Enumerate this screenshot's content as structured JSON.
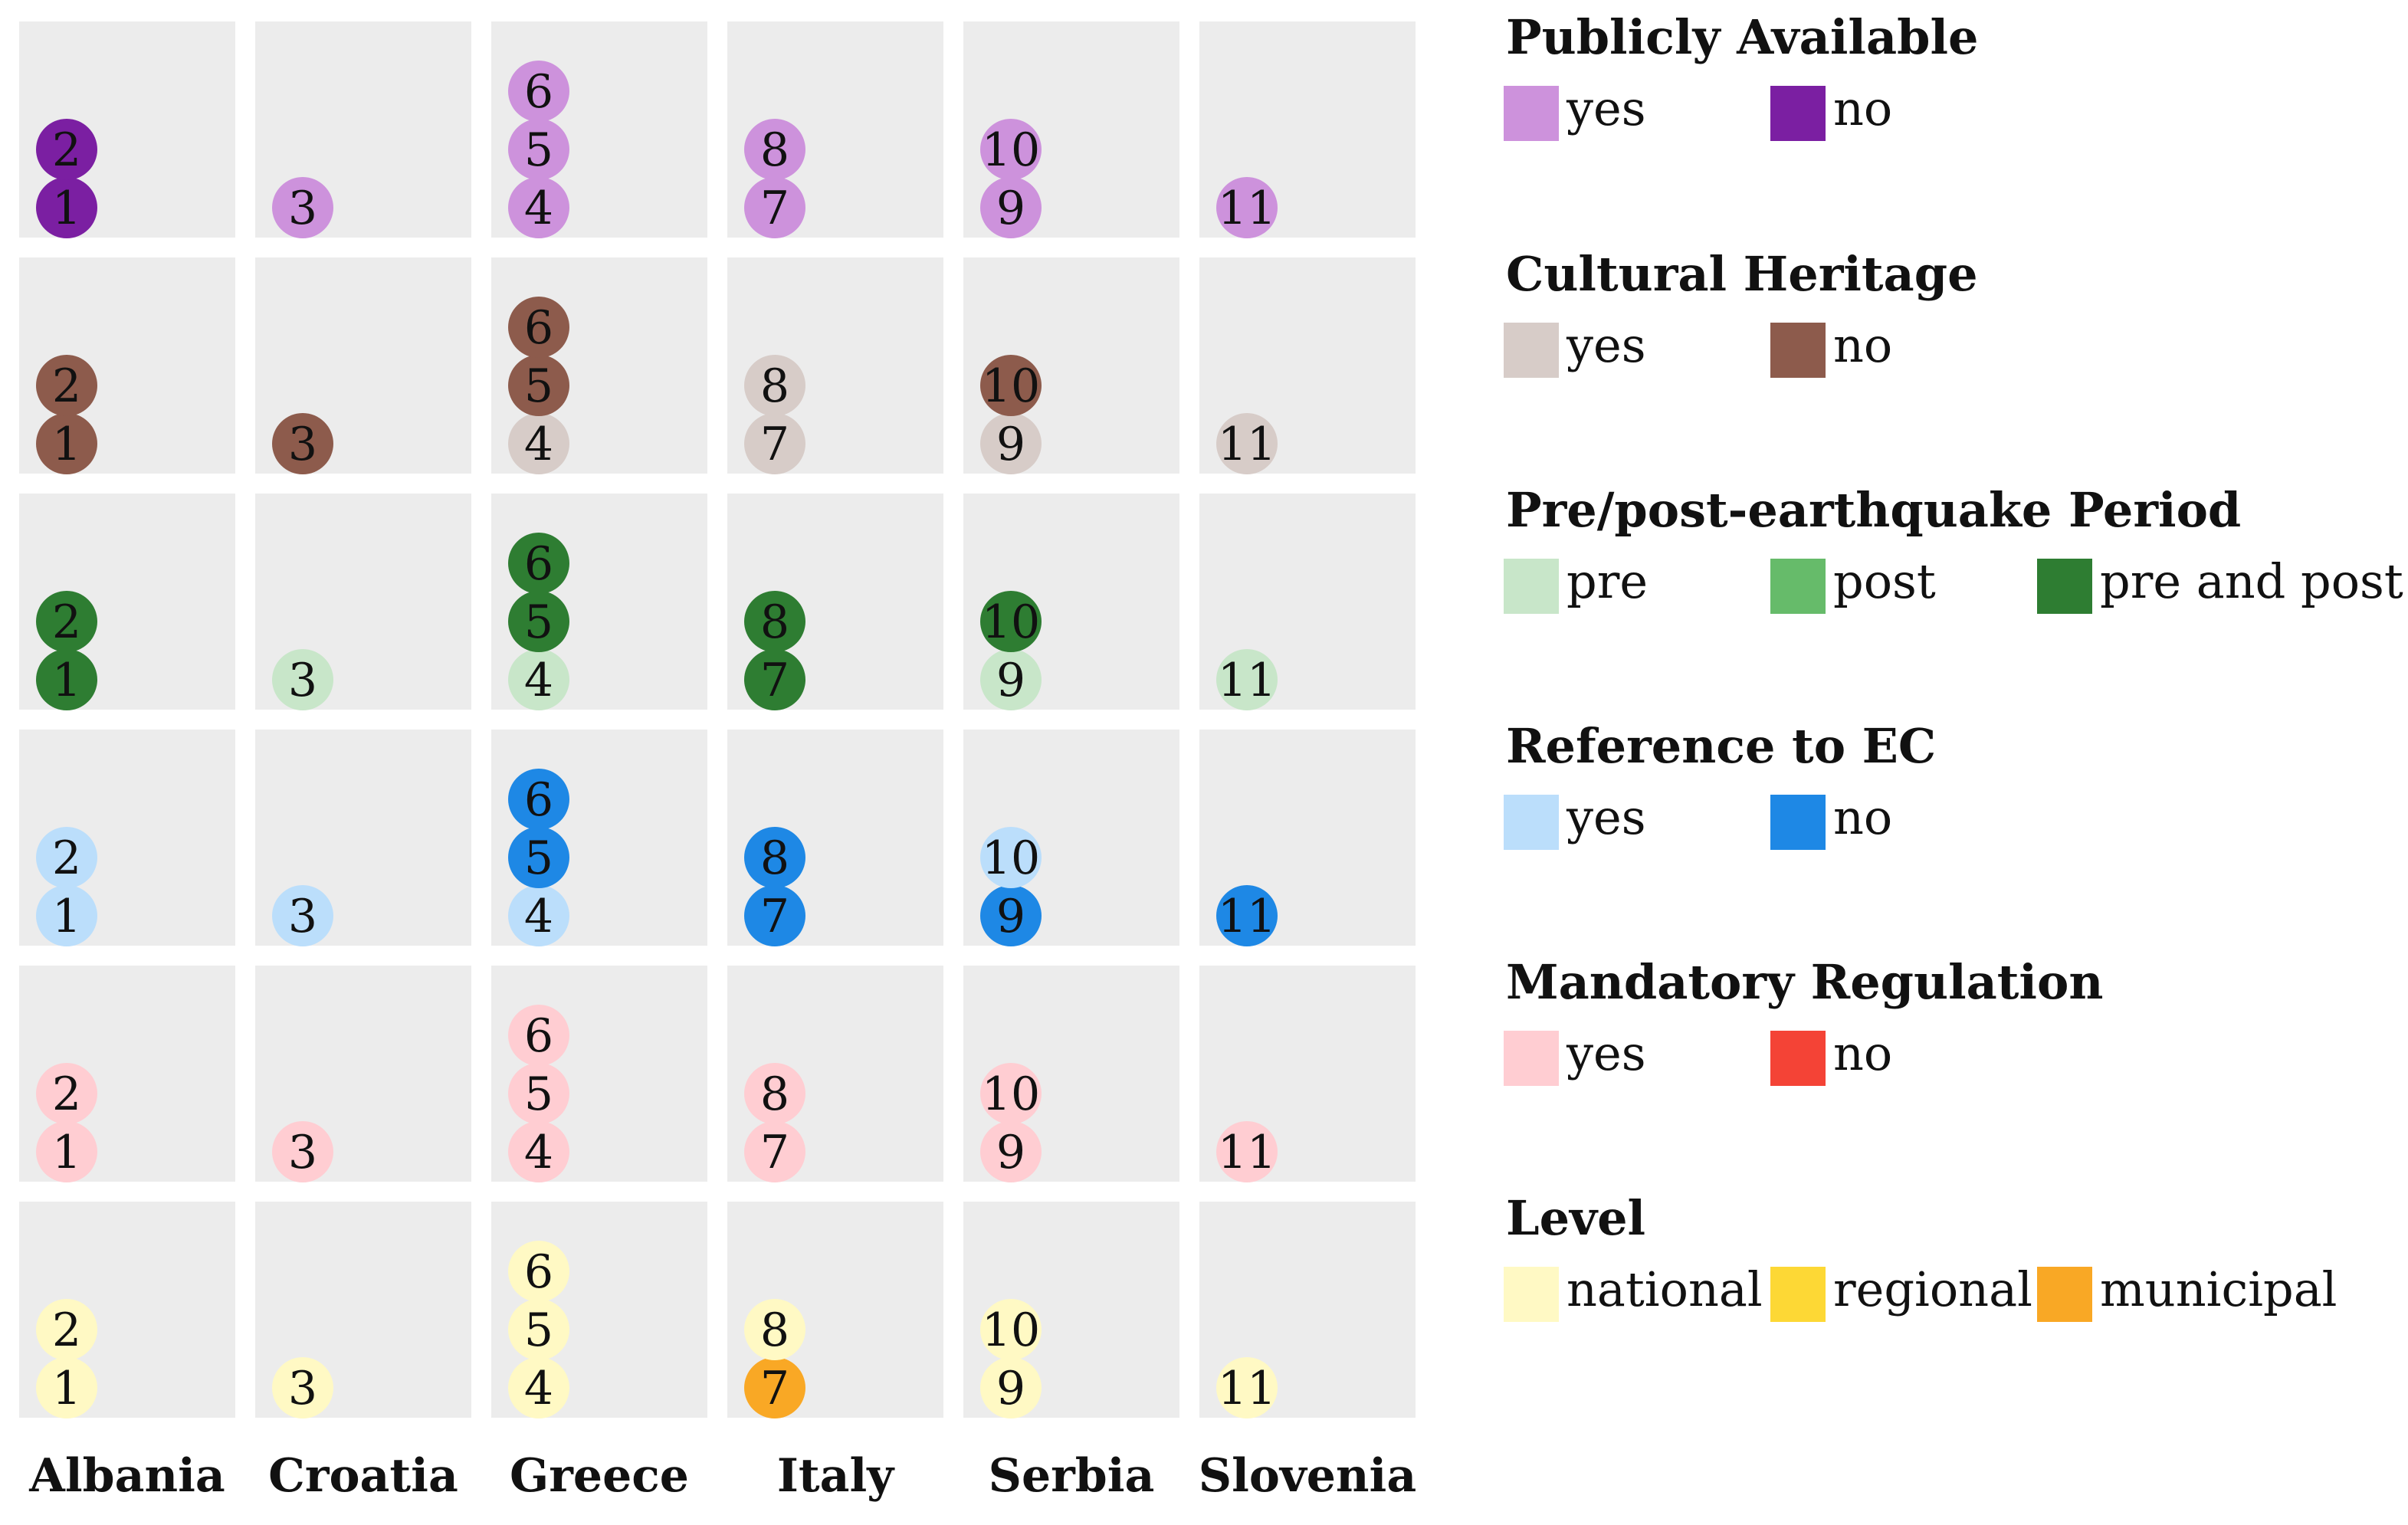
{
  "chart_data": {
    "type": "table",
    "countries": [
      "Albania",
      "Croatia",
      "Greece",
      "Italy",
      "Serbia",
      "Slovenia"
    ],
    "documents_by_country": [
      [
        1,
        2
      ],
      [
        3
      ],
      [
        4,
        5,
        6
      ],
      [
        7,
        8
      ],
      [
        9,
        10
      ],
      [
        11
      ]
    ],
    "rows": [
      {
        "title": "Publicly Available",
        "categories": [
          {
            "label": "yes",
            "color": "#cd92dc"
          },
          {
            "label": "no",
            "color": "#7b1fa2"
          }
        ],
        "values": [
          "no",
          "no",
          "yes",
          "yes",
          "yes",
          "yes",
          "yes",
          "yes",
          "yes",
          "yes",
          "yes"
        ]
      },
      {
        "title": "Cultural Heritage",
        "categories": [
          {
            "label": "yes",
            "color": "#d7ccc8"
          },
          {
            "label": "no",
            "color": "#8d5b4c"
          }
        ],
        "values": [
          "no",
          "no",
          "no",
          "yes",
          "no",
          "no",
          "yes",
          "yes",
          "yes",
          "no",
          "yes"
        ]
      },
      {
        "title": "Pre/post-earthquake Period",
        "categories": [
          {
            "label": "pre",
            "color": "#c8e6c9"
          },
          {
            "label": "post",
            "color": "#66bb6a"
          },
          {
            "label": "pre and post",
            "color": "#2e7d32"
          }
        ],
        "values": [
          "pre and post",
          "pre and post",
          "pre",
          "pre",
          "pre and post",
          "pre and post",
          "pre and post",
          "pre and post",
          "pre",
          "pre and post",
          "pre"
        ]
      },
      {
        "title": "Reference to EC",
        "categories": [
          {
            "label": "yes",
            "color": "#bbdefb"
          },
          {
            "label": "no",
            "color": "#1e88e5"
          }
        ],
        "values": [
          "yes",
          "yes",
          "yes",
          "yes",
          "no",
          "no",
          "no",
          "no",
          "no",
          "yes",
          "no"
        ]
      },
      {
        "title": "Mandatory Regulation",
        "categories": [
          {
            "label": "yes",
            "color": "#ffcdd2"
          },
          {
            "label": "no",
            "color": "#f44336"
          }
        ],
        "values": [
          "yes",
          "yes",
          "yes",
          "yes",
          "yes",
          "yes",
          "yes",
          "yes",
          "yes",
          "yes",
          "yes"
        ]
      },
      {
        "title": "Level",
        "categories": [
          {
            "label": "national",
            "color": "#fff9c4"
          },
          {
            "label": "regional",
            "color": "#fdd835"
          },
          {
            "label": "municipal",
            "color": "#f9a825"
          }
        ],
        "values": [
          "national",
          "national",
          "national",
          "national",
          "national",
          "national",
          "municipal",
          "national",
          "national",
          "national",
          "national"
        ]
      }
    ],
    "colors": {
      "cell_background": "#ececec",
      "label_text": "#111111"
    }
  }
}
